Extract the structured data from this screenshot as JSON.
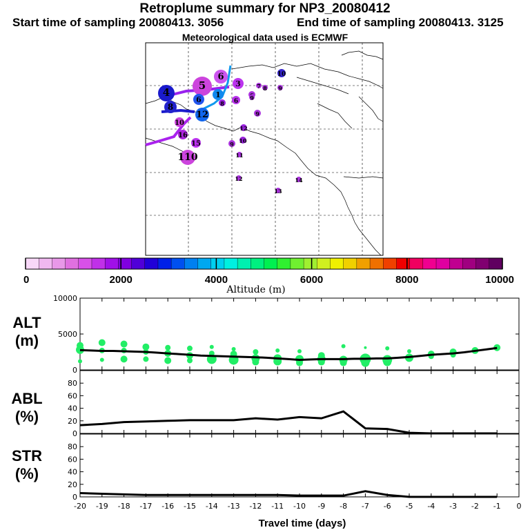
{
  "header": {
    "title": "Retroplume summary for NP3_20080412",
    "start": "Start time of sampling 20080413.  3056",
    "end": "End time of sampling 20080413.  3125",
    "met": "Meteorological data used is ECMWF"
  },
  "map": {
    "markers": [
      {
        "label": "6",
        "color": "#cc55ee",
        "size": 10
      },
      {
        "label": "5",
        "color": "#cc44dd",
        "size": 14
      },
      {
        "label": "3",
        "color": "#bb33ee",
        "size": 8
      },
      {
        "label": "4",
        "color": "#1a1acc",
        "size": 12
      },
      {
        "label": "8",
        "color": "#2222cc",
        "size": 9
      },
      {
        "label": "6",
        "color": "#2255ee",
        "size": 8
      },
      {
        "label": "12",
        "color": "#1166ee",
        "size": 10
      },
      {
        "label": "10",
        "color": "#cc44dd",
        "size": 7
      },
      {
        "label": "16",
        "color": "#aa22dd",
        "size": 7
      },
      {
        "label": "15",
        "color": "#bb33ee",
        "size": 7
      },
      {
        "label": "110",
        "color": "#cc44dd",
        "size": 11
      },
      {
        "label": "1",
        "color": "#1188ee",
        "size": 8
      },
      {
        "label": "6",
        "color": "#bb33ee",
        "size": 6
      },
      {
        "label": "8",
        "color": "#9922dd",
        "size": 5
      },
      {
        "label": "6",
        "color": "#aa33dd",
        "size": 5
      },
      {
        "label": "10",
        "color": "#3322cc",
        "size": 6
      },
      {
        "label": "9",
        "color": "#aa33dd",
        "size": 5
      },
      {
        "label": "12",
        "color": "#9922dd",
        "size": 5
      },
      {
        "label": "9",
        "color": "#aa33dd",
        "size": 5
      },
      {
        "label": "10",
        "color": "#9922dd",
        "size": 5
      },
      {
        "label": "11",
        "color": "#aa33dd",
        "size": 4
      },
      {
        "label": "12",
        "color": "#aa33dd",
        "size": 4
      },
      {
        "label": "14",
        "color": "#aa33dd",
        "size": 4
      },
      {
        "label": "13",
        "color": "#aa33dd",
        "size": 4
      },
      {
        "label": "9",
        "color": "#aa33dd",
        "size": 4
      },
      {
        "label": "7",
        "color": "#aa33dd",
        "size": 4
      },
      {
        "label": "8",
        "color": "#aa33dd",
        "size": 4
      },
      {
        "label": "9",
        "color": "#aa33dd",
        "size": 4
      }
    ]
  },
  "colorbar": {
    "title": "Altitude (m)",
    "tick_labels": [
      "0",
      "2000",
      "4000",
      "6000",
      "8000",
      "10000"
    ],
    "colors": [
      "#f8d8f8",
      "#f0b8f0",
      "#e898e8",
      "#e070e0",
      "#d850e8",
      "#c030e8",
      "#a010e8",
      "#8000e0",
      "#5000d8",
      "#2000d8",
      "#0020e8",
      "#0050f0",
      "#0080f0",
      "#00a8f0",
      "#00d0f0",
      "#00f0e0",
      "#00f0b0",
      "#00f080",
      "#00f050",
      "#30f030",
      "#70f030",
      "#a0f030",
      "#d0f020",
      "#f0f000",
      "#f0d000",
      "#f0a000",
      "#f07000",
      "#f04000",
      "#f00000",
      "#f00060",
      "#f00090",
      "#e000a0",
      "#c00090",
      "#a00080",
      "#800070",
      "#600060"
    ]
  },
  "chart_data": [
    {
      "type": "scatter",
      "title": "ALT",
      "panel_label": "ALT",
      "panel_unit": "(m)",
      "ylim": [
        0,
        10000
      ],
      "y_ticks": [
        "0",
        "5000",
        "10000"
      ],
      "xlim": [
        -20,
        0
      ],
      "x": [
        -20,
        -19.5,
        -19,
        -18.5,
        -18,
        -17.5,
        -17,
        -16.5,
        -16,
        -15.5,
        -15,
        -14.5,
        -14,
        -13.5,
        -13,
        -12.5,
        -12,
        -11.5,
        -11,
        -10.5,
        -10,
        -9.5,
        -9,
        -8.5,
        -8,
        -7.5,
        -7,
        -6.5,
        -6,
        -5.5,
        -5,
        -4.5,
        -4,
        -3.5,
        -3,
        -2.5,
        -2,
        -1.5,
        -1
      ],
      "mean_line": [
        2750,
        2700,
        2650,
        2650,
        2600,
        2550,
        2500,
        2400,
        2300,
        2200,
        2100,
        2000,
        1950,
        1900,
        1850,
        1800,
        1750,
        1700,
        1600,
        1500,
        1400,
        1450,
        1500,
        1500,
        1500,
        1550,
        1550,
        1600,
        1600,
        1700,
        1800,
        1950,
        2100,
        2200,
        2300,
        2450,
        2650,
        2850,
        3050
      ],
      "points": [
        {
          "x": -20,
          "y": 3400,
          "s": 5
        },
        {
          "x": -20,
          "y": 2800,
          "s": 6
        },
        {
          "x": -20,
          "y": 1200,
          "s": 3
        },
        {
          "x": -19,
          "y": 3800,
          "s": 5
        },
        {
          "x": -19,
          "y": 2700,
          "s": 4
        },
        {
          "x": -19,
          "y": 1400,
          "s": 3
        },
        {
          "x": -18,
          "y": 3600,
          "s": 5
        },
        {
          "x": -18,
          "y": 2700,
          "s": 4
        },
        {
          "x": -18,
          "y": 1500,
          "s": 5
        },
        {
          "x": -17,
          "y": 3200,
          "s": 5
        },
        {
          "x": -17,
          "y": 2500,
          "s": 4
        },
        {
          "x": -17,
          "y": 1500,
          "s": 4
        },
        {
          "x": -16,
          "y": 3100,
          "s": 4
        },
        {
          "x": -16,
          "y": 2300,
          "s": 5
        },
        {
          "x": -16,
          "y": 1300,
          "s": 5
        },
        {
          "x": -15,
          "y": 3000,
          "s": 4
        },
        {
          "x": -15,
          "y": 2000,
          "s": 5
        },
        {
          "x": -15,
          "y": 1300,
          "s": 4
        },
        {
          "x": -14,
          "y": 3200,
          "s": 3
        },
        {
          "x": -14,
          "y": 2300,
          "s": 4
        },
        {
          "x": -14,
          "y": 1500,
          "s": 7
        },
        {
          "x": -13,
          "y": 2900,
          "s": 3
        },
        {
          "x": -13,
          "y": 2200,
          "s": 5
        },
        {
          "x": -13,
          "y": 1400,
          "s": 7
        },
        {
          "x": -12,
          "y": 2500,
          "s": 4
        },
        {
          "x": -12,
          "y": 1600,
          "s": 6
        },
        {
          "x": -12,
          "y": 1100,
          "s": 5
        },
        {
          "x": -11,
          "y": 2700,
          "s": 3
        },
        {
          "x": -11,
          "y": 1600,
          "s": 6
        },
        {
          "x": -11,
          "y": 1200,
          "s": 6
        },
        {
          "x": -10,
          "y": 2600,
          "s": 3
        },
        {
          "x": -10,
          "y": 1500,
          "s": 6
        },
        {
          "x": -10,
          "y": 1000,
          "s": 5
        },
        {
          "x": -9,
          "y": 2000,
          "s": 5
        },
        {
          "x": -9,
          "y": 1500,
          "s": 6
        },
        {
          "x": -9,
          "y": 1100,
          "s": 5
        },
        {
          "x": -8,
          "y": 3300,
          "s": 3
        },
        {
          "x": -8,
          "y": 1400,
          "s": 6
        },
        {
          "x": -8,
          "y": 1000,
          "s": 5
        },
        {
          "x": -7,
          "y": 3100,
          "s": 2
        },
        {
          "x": -7,
          "y": 1500,
          "s": 8
        },
        {
          "x": -7,
          "y": 1000,
          "s": 6
        },
        {
          "x": -6,
          "y": 3000,
          "s": 3
        },
        {
          "x": -6,
          "y": 1400,
          "s": 7
        },
        {
          "x": -6,
          "y": 1100,
          "s": 6
        },
        {
          "x": -5,
          "y": 2600,
          "s": 3
        },
        {
          "x": -5,
          "y": 1700,
          "s": 6
        },
        {
          "x": -4,
          "y": 2200,
          "s": 5
        },
        {
          "x": -4,
          "y": 1900,
          "s": 4
        },
        {
          "x": -3,
          "y": 2500,
          "s": 5
        },
        {
          "x": -3,
          "y": 2100,
          "s": 4
        },
        {
          "x": -2,
          "y": 2700,
          "s": 5
        },
        {
          "x": -1,
          "y": 3100,
          "s": 5
        }
      ]
    },
    {
      "type": "line",
      "title": "ABL",
      "panel_label": "ABL",
      "panel_unit": "(%)",
      "ylim": [
        0,
        100
      ],
      "y_ticks": [
        "0",
        "20",
        "40",
        "60",
        "80"
      ],
      "xlim": [
        -20,
        0
      ],
      "x": [
        -20,
        -19,
        -18,
        -17,
        -16,
        -15,
        -14,
        -13,
        -12,
        -11,
        -10,
        -9,
        -8,
        -7,
        -6,
        -5,
        -4,
        -3,
        -2,
        -1
      ],
      "values": [
        13,
        15,
        18,
        19,
        20,
        21,
        21,
        21,
        24,
        22,
        26,
        24,
        35,
        8,
        7,
        1,
        0,
        0,
        0,
        0
      ]
    },
    {
      "type": "line",
      "title": "STR",
      "panel_label": "STR",
      "panel_unit": "(%)",
      "ylim": [
        0,
        100
      ],
      "y_ticks": [
        "0",
        "20",
        "40",
        "60",
        "80"
      ],
      "xlim": [
        -20,
        0
      ],
      "x": [
        -20,
        -19,
        -18,
        -17,
        -16,
        -15,
        -14,
        -13,
        -12,
        -11,
        -10,
        -9,
        -8,
        -7,
        -6,
        -5,
        -4,
        -3,
        -2,
        -1
      ],
      "values": [
        6,
        5,
        4,
        3,
        3,
        3,
        3,
        3,
        3,
        3,
        2,
        2,
        2,
        9,
        3,
        0,
        0,
        0,
        0,
        0
      ],
      "x_tick_labels": [
        "-20",
        "-19",
        "-18",
        "-17",
        "-16",
        "-15",
        "-14",
        "-13",
        "-12",
        "-11",
        "-10",
        "-9",
        "-8",
        "-7",
        "-6",
        "-5",
        "-4",
        "-3",
        "-2",
        "-1",
        "0"
      ],
      "xlabel": "Travel time (days)"
    }
  ]
}
